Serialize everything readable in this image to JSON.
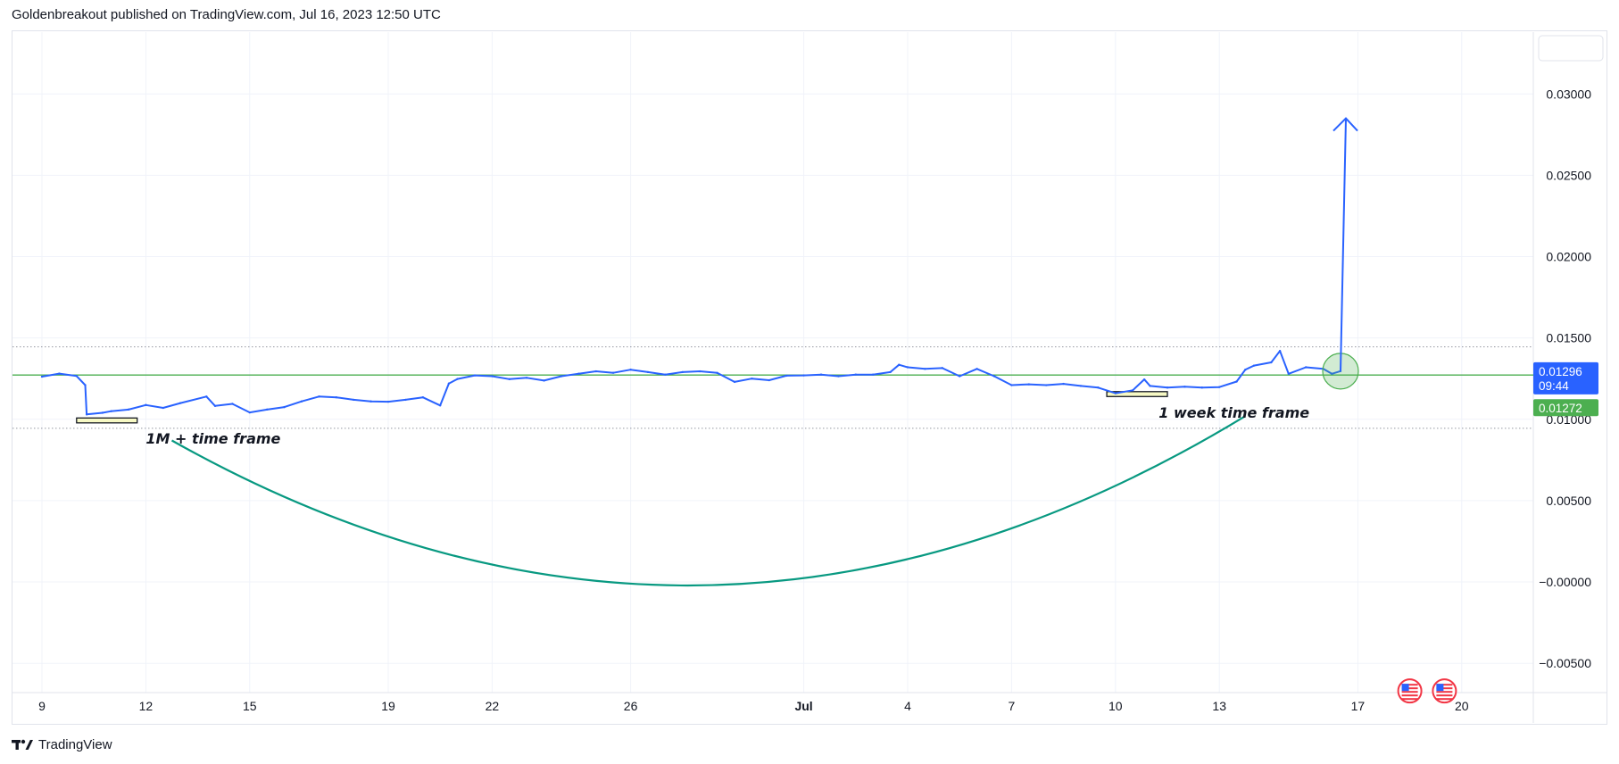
{
  "header": {
    "text": "Goldenbreakout published on TradingView.com, Jul 16, 2023 12:50 UTC"
  },
  "footer": {
    "brand": "TradingView",
    "logo_icon": "tradingview-logo-icon"
  },
  "colors": {
    "price_line": "#2962ff",
    "resistance_line": "#4caf50",
    "curve": "#089981",
    "dotted": "#9598a1",
    "grid": "#f0f3fa",
    "last_price_tag": "#2962ff",
    "level_tag": "#4caf50"
  },
  "chart_data": {
    "type": "line",
    "ylim": [
      -0.0068,
      0.0338
    ],
    "y_ticks": [
      {
        "value": 0.03,
        "label": "0.03000"
      },
      {
        "value": 0.025,
        "label": "0.02500"
      },
      {
        "value": 0.02,
        "label": "0.02000"
      },
      {
        "value": 0.015,
        "label": "0.01500"
      },
      {
        "value": 0.01,
        "label": "0.01000"
      },
      {
        "value": 0.005,
        "label": "0.00500"
      },
      {
        "value": 0.0,
        "label": "−0.00000"
      },
      {
        "value": -0.005,
        "label": "−0.00500"
      }
    ],
    "x_ticks": [
      {
        "date": "2023-06-09",
        "label": "9"
      },
      {
        "date": "2023-06-12",
        "label": "12"
      },
      {
        "date": "2023-06-15",
        "label": "15"
      },
      {
        "date": "2023-06-19",
        "label": "19"
      },
      {
        "date": "2023-06-22",
        "label": "22"
      },
      {
        "date": "2023-06-26",
        "label": "26"
      },
      {
        "date": "2023-07-01",
        "label": "Jul",
        "bold": true
      },
      {
        "date": "2023-07-04",
        "label": "4"
      },
      {
        "date": "2023-07-07",
        "label": "7"
      },
      {
        "date": "2023-07-10",
        "label": "10"
      },
      {
        "date": "2023-07-13",
        "label": "13"
      },
      {
        "date": "2023-07-17",
        "label": "17"
      },
      {
        "date": "2023-07-20",
        "label": "20"
      }
    ],
    "series": [
      {
        "points": [
          [
            "2023-06-09",
            0.01262
          ],
          [
            "2023-06-09T12:00",
            0.01281
          ],
          [
            "2023-06-10",
            0.01266
          ],
          [
            "2023-06-10T06:00",
            0.0121
          ],
          [
            "2023-06-10T07:00",
            0.0103
          ],
          [
            "2023-06-10T18:00",
            0.0104
          ],
          [
            "2023-06-11",
            0.0105
          ],
          [
            "2023-06-11T12:00",
            0.0106
          ],
          [
            "2023-06-12",
            0.01088
          ],
          [
            "2023-06-12T12:00",
            0.0107
          ],
          [
            "2023-06-13",
            0.011
          ],
          [
            "2023-06-13T18:00",
            0.0114
          ],
          [
            "2023-06-14",
            0.01082
          ],
          [
            "2023-06-14T12:00",
            0.01095
          ],
          [
            "2023-06-15",
            0.01042
          ],
          [
            "2023-06-15T12:00",
            0.0106
          ],
          [
            "2023-06-16",
            0.01075
          ],
          [
            "2023-06-16T12:00",
            0.0111
          ],
          [
            "2023-06-17",
            0.0114
          ],
          [
            "2023-06-17T12:00",
            0.01135
          ],
          [
            "2023-06-18",
            0.0112
          ],
          [
            "2023-06-18T12:00",
            0.0111
          ],
          [
            "2023-06-19",
            0.01108
          ],
          [
            "2023-06-19T12:00",
            0.0112
          ],
          [
            "2023-06-20",
            0.01135
          ],
          [
            "2023-06-20T12:00",
            0.01085
          ],
          [
            "2023-06-20T18:00",
            0.0122
          ],
          [
            "2023-06-21",
            0.01248
          ],
          [
            "2023-06-21T12:00",
            0.0127
          ],
          [
            "2023-06-22",
            0.01265
          ],
          [
            "2023-06-22T12:00",
            0.01247
          ],
          [
            "2023-06-23",
            0.01255
          ],
          [
            "2023-06-23T12:00",
            0.01238
          ],
          [
            "2023-06-24",
            0.01265
          ],
          [
            "2023-06-24T12:00",
            0.0128
          ],
          [
            "2023-06-25",
            0.01295
          ],
          [
            "2023-06-25T12:00",
            0.01286
          ],
          [
            "2023-06-26",
            0.01305
          ],
          [
            "2023-06-26T12:00",
            0.0129
          ],
          [
            "2023-06-27",
            0.01275
          ],
          [
            "2023-06-27T12:00",
            0.0129
          ],
          [
            "2023-06-28",
            0.01295
          ],
          [
            "2023-06-28T12:00",
            0.01285
          ],
          [
            "2023-06-29",
            0.0123
          ],
          [
            "2023-06-29T12:00",
            0.0125
          ],
          [
            "2023-06-30",
            0.0124
          ],
          [
            "2023-06-30T12:00",
            0.01268
          ],
          [
            "2023-07-01",
            0.0127
          ],
          [
            "2023-07-01T12:00",
            0.01275
          ],
          [
            "2023-07-02",
            0.01265
          ],
          [
            "2023-07-02T12:00",
            0.01275
          ],
          [
            "2023-07-03",
            0.01275
          ],
          [
            "2023-07-03T12:00",
            0.0129
          ],
          [
            "2023-07-03T18:00",
            0.01335
          ],
          [
            "2023-07-04",
            0.0132
          ],
          [
            "2023-07-04T12:00",
            0.0131
          ],
          [
            "2023-07-05",
            0.01315
          ],
          [
            "2023-07-05T12:00",
            0.01265
          ],
          [
            "2023-07-06",
            0.0131
          ],
          [
            "2023-07-06T12:00",
            0.01265
          ],
          [
            "2023-07-07",
            0.0121
          ],
          [
            "2023-07-07T12:00",
            0.01215
          ],
          [
            "2023-07-08",
            0.0121
          ],
          [
            "2023-07-08T12:00",
            0.01218
          ],
          [
            "2023-07-09",
            0.01205
          ],
          [
            "2023-07-09T12:00",
            0.01195
          ],
          [
            "2023-07-10",
            0.0116
          ],
          [
            "2023-07-10T12:00",
            0.01178
          ],
          [
            "2023-07-10T20:00",
            0.01245
          ],
          [
            "2023-07-11",
            0.01205
          ],
          [
            "2023-07-11T12:00",
            0.01195
          ],
          [
            "2023-07-12",
            0.012
          ],
          [
            "2023-07-12T12:00",
            0.01195
          ],
          [
            "2023-07-13",
            0.01198
          ],
          [
            "2023-07-13T12:00",
            0.01232
          ],
          [
            "2023-07-13T18:00",
            0.01305
          ],
          [
            "2023-07-14",
            0.0133
          ],
          [
            "2023-07-14T12:00",
            0.0135
          ],
          [
            "2023-07-14T18:00",
            0.0142
          ],
          [
            "2023-07-15",
            0.0128
          ],
          [
            "2023-07-15T12:00",
            0.0132
          ],
          [
            "2023-07-16",
            0.0131
          ],
          [
            "2023-07-16T06:00",
            0.0128
          ],
          [
            "2023-07-16T12:00",
            0.01296
          ]
        ]
      }
    ],
    "hlines": [
      {
        "name": "resistance-line",
        "value": 0.01272,
        "style": "solid",
        "color": "#4caf50"
      },
      {
        "name": "upper-dotted-line",
        "value": 0.01445,
        "style": "dotted",
        "color": "#9598a1"
      },
      {
        "name": "lower-dotted-line",
        "value": 0.00945,
        "style": "dotted",
        "color": "#9598a1"
      }
    ],
    "price_tags": [
      {
        "name": "last-price-tag",
        "value": 0.01296,
        "label": "0.01296",
        "sublabel": "09:44",
        "color": "#2962ff"
      },
      {
        "name": "level-price-tag",
        "value": 0.01272,
        "label": "0.01272",
        "color": "#4caf50"
      }
    ],
    "annotations": [
      {
        "name": "annotation-1m",
        "text": "1M + time frame",
        "date": "2023-06-12T00:00",
        "value": 0.0085
      },
      {
        "name": "annotation-1w",
        "text": "1 week time frame",
        "date": "2023-07-11T06:00",
        "value": 0.0101
      }
    ],
    "boxes": [
      {
        "name": "box-1m",
        "from": "2023-06-10T00:00",
        "to": "2023-06-11T18:00",
        "low": 0.00978,
        "high": 0.01008
      },
      {
        "name": "box-1w",
        "from": "2023-07-09T18:00",
        "to": "2023-07-11T12:00",
        "low": 0.0114,
        "high": 0.0117
      }
    ],
    "arrow": {
      "from": [
        "2023-07-16T12:00",
        0.01296
      ],
      "to": [
        "2023-07-16T12:00",
        0.0285
      ]
    },
    "arc": {
      "from": [
        "2023-06-12T18:00",
        0.0087
      ],
      "via": [
        "2023-06-28T06:00",
        -0.0002
      ],
      "to": [
        "2023-07-13T18:00",
        0.0102
      ]
    },
    "circle": {
      "center": [
        "2023-07-16T12:00",
        0.01296
      ]
    },
    "flags": [
      {
        "name": "event-flag-1",
        "date": "2023-07-18T12:00",
        "value": -0.0067
      },
      {
        "name": "event-flag-2",
        "date": "2023-07-19T12:00",
        "value": -0.0067
      }
    ],
    "grid": true,
    "legend": "none"
  }
}
